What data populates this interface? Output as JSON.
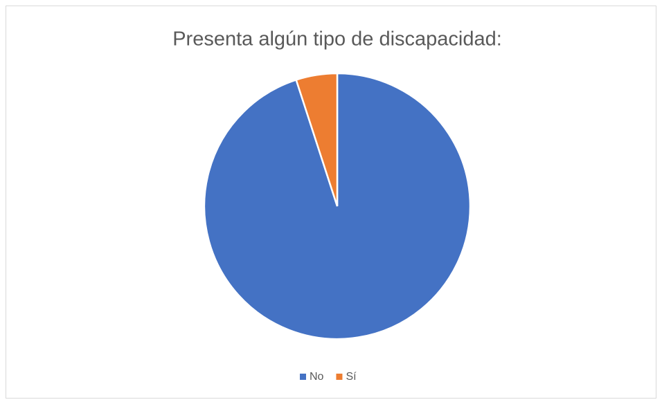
{
  "chart_data": {
    "type": "pie",
    "title": "Presenta algún tipo de discapacidad:",
    "categories": [
      "No",
      "Sí"
    ],
    "values": [
      95,
      5
    ],
    "colors": [
      "#4472c4",
      "#ed7d31"
    ],
    "legend": "bottom"
  }
}
